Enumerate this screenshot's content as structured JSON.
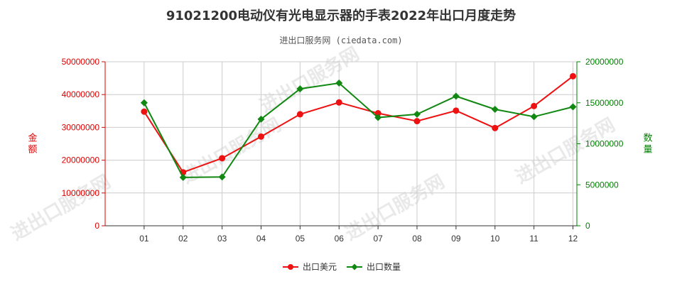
{
  "title": "91021200电动仪有光电显示器的手表2022年出口月度走势",
  "subtitle": "进出口服务网 (ciedata.com)",
  "watermark": "进出口服务网",
  "colors": {
    "left_axis": "#dd0000",
    "right_axis": "#008000",
    "series_usd": "#ee1111",
    "series_qty": "#118811",
    "grid": "#cccccc"
  },
  "chart_data": {
    "type": "line",
    "categories": [
      "01",
      "02",
      "03",
      "04",
      "05",
      "06",
      "07",
      "08",
      "09",
      "10",
      "11",
      "12"
    ],
    "y_left": {
      "label": "金额",
      "min": 0,
      "max": 50000000,
      "ticks": [
        "0",
        "10000000",
        "20000000",
        "30000000",
        "40000000",
        "50000000"
      ]
    },
    "y_right": {
      "label": "数量",
      "min": 0,
      "max": 20000000,
      "ticks": [
        "0",
        "5000000",
        "10000000",
        "15000000",
        "20000000"
      ]
    },
    "series": [
      {
        "name": "出口美元",
        "axis": "left",
        "marker": "circle",
        "values": [
          34800000,
          16300000,
          20600000,
          27200000,
          34000000,
          37600000,
          34300000,
          31900000,
          35100000,
          29800000,
          36500000,
          45600000
        ]
      },
      {
        "name": "出口数量",
        "axis": "right",
        "marker": "diamond",
        "values": [
          15000000,
          5900000,
          5950000,
          13000000,
          16700000,
          17400000,
          13200000,
          13600000,
          15800000,
          14200000,
          13300000,
          14500000
        ]
      }
    ],
    "grid": true,
    "legend": "bottom"
  }
}
